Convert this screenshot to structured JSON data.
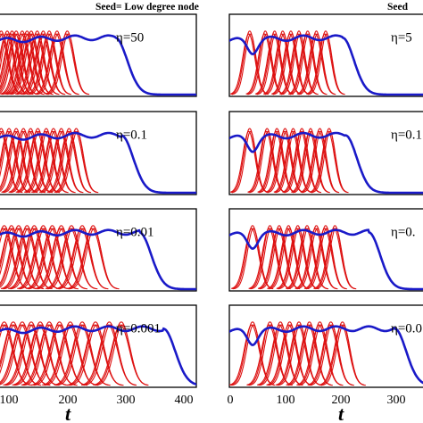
{
  "chart_data": {
    "type": "line",
    "colors": {
      "red": "#dd1111",
      "blue": "#1a1ac8"
    },
    "x_ticks": [
      "100",
      "200",
      "300",
      "400"
    ],
    "x_ticks_right": [
      "0",
      "100",
      "200",
      "300"
    ],
    "xlabel": "t",
    "columns": [
      {
        "title": "Seed= Low degree node",
        "xlim": [
          70,
          400
        ],
        "panels": [
          {
            "label": "η=50",
            "blue_end": 265,
            "red_peaks": [
              75,
              85,
              93,
              100,
              110,
              118,
              125,
              135,
              145,
              155,
              168,
              185
            ],
            "red_width": 11
          },
          {
            "label": "η=0.1",
            "blue_end": 275,
            "red_peaks": [
              75,
              88,
              100,
              112,
              124,
              136,
              150,
              162,
              175,
              188,
              200
            ],
            "red_width": 11
          },
          {
            "label": "η=0.01",
            "blue_end": 305,
            "red_peaks": [
              80,
              92,
              104,
              118,
              130,
              145,
              160,
              175,
              192,
              210,
              228
            ],
            "red_width": 13
          },
          {
            "label": "η=0.001",
            "blue_end": 345,
            "red_peaks": [
              80,
              95,
              110,
              125,
              140,
              155,
              172,
              190,
              210,
              232,
              255,
              275
            ],
            "red_width": 14
          }
        ]
      },
      {
        "title": "Seed",
        "xlim": [
          0,
          340
        ],
        "panels": [
          {
            "label": "η=5",
            "blue_end": 195,
            "red_peaks": [
              35,
              62,
              78,
              92,
              106,
              120,
              135,
              150,
              166
            ],
            "red_width": 10
          },
          {
            "label": "η=0.1",
            "blue_end": 200,
            "red_peaks": [
              35,
              65,
              82,
              96,
              110,
              125,
              140,
              156,
              172
            ],
            "red_width": 10
          },
          {
            "label": "η=0.",
            "blue_end": 240,
            "red_peaks": [
              40,
              70,
              86,
              102,
              118,
              134,
              150,
              166,
              182
            ],
            "red_width": 11
          },
          {
            "label": "η=0.0",
            "blue_end": 285,
            "red_peaks": [
              40,
              70,
              88,
              104,
              120,
              138,
              156,
              175,
              195
            ],
            "red_width": 12
          }
        ]
      }
    ]
  }
}
